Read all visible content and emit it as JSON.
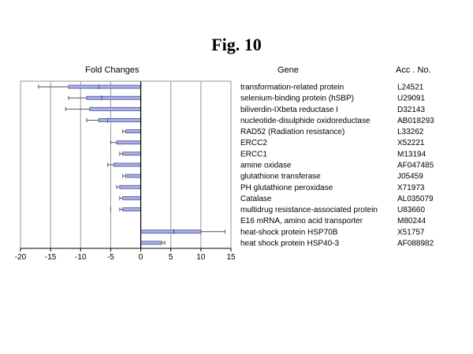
{
  "figure_title": "Fig. 10",
  "headers": {
    "fold": "Fold Changes",
    "gene": "Gene",
    "acc": "Acc . No."
  },
  "colors": {
    "bar_fill": "#aab0ee",
    "bar_edge": "#4a4a8a",
    "grid": "#999999",
    "axis": "#000000",
    "error": "#555555"
  },
  "chart_data": {
    "type": "bar",
    "orientation": "horizontal",
    "title": "",
    "xlabel": "",
    "ylabel": "",
    "xlim": [
      -20,
      15
    ],
    "xticks": [
      -20,
      -15,
      -10,
      -5,
      0,
      5,
      10,
      15
    ],
    "grid": "vertical",
    "categories": [
      "transformation-related protein",
      "selenium-binding protein (hSBP)",
      "biliverdin-IXbeta reductase I",
      "nucleotide-disulphide oxidoreductase",
      "RAD52 (Radiation resistance)",
      "ERCC2",
      "ERCC1",
      "amine oxidase",
      "glutathione transferase",
      "PH glutathione peroxidase",
      "Catalase",
      "multidrug resistance-associated protein",
      "E16 mRNA, amino acid transporter",
      "heat-shock protein HSP70B",
      "heat shock protein HSP40-3"
    ],
    "accessions": [
      "L24521",
      "U29091",
      "D32143",
      "AB018293",
      "L33262",
      "X52221",
      "M13194",
      "AF047485",
      "J05459",
      "X71973",
      "AL035079",
      "U83660",
      "M80244",
      "X51757",
      "AF088982"
    ],
    "values": [
      -12.0,
      -9.0,
      -8.5,
      -7.0,
      -2.5,
      -4.0,
      -3.0,
      -4.5,
      -2.5,
      -3.5,
      -3.0,
      -3.0,
      0,
      10.0,
      3.5
    ],
    "errors": [
      5.0,
      3.0,
      4.0,
      2.0,
      0.5,
      1.0,
      0.5,
      1.0,
      0.5,
      0.5,
      0.5,
      0.5,
      0,
      4.0,
      0.5
    ],
    "inner_values": [
      -7.0,
      -6.5,
      null,
      -5.5,
      null,
      null,
      null,
      null,
      null,
      null,
      null,
      -5.0,
      null,
      5.5,
      null
    ]
  }
}
